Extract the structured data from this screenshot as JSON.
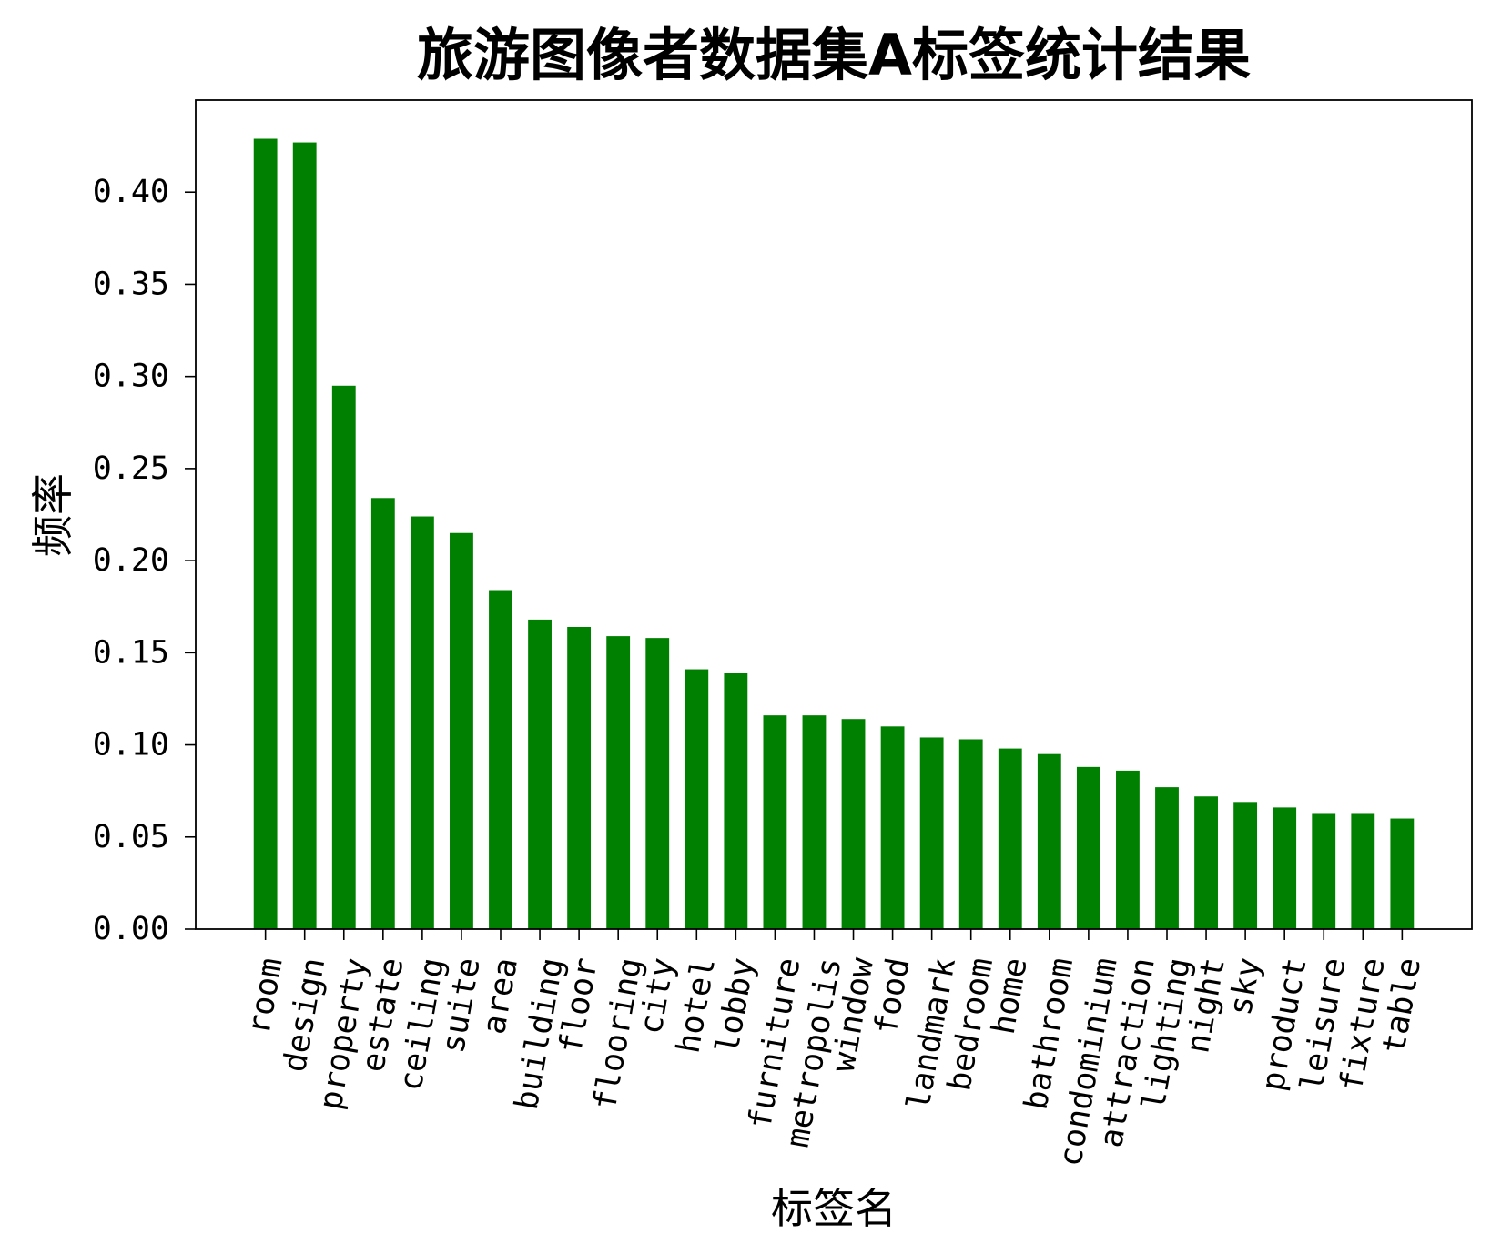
{
  "chart_data": {
    "type": "bar",
    "title": "旅游图像者数据集A标签统计结果",
    "xlabel": "标签名",
    "ylabel": "频率",
    "categories": [
      "room",
      "design",
      "property",
      "estate",
      "ceiling",
      "suite",
      "area",
      "building",
      "floor",
      "flooring",
      "city",
      "hotel",
      "lobby",
      "furniture",
      "metropolis",
      "window",
      "food",
      "landmark",
      "bedroom",
      "home",
      "bathroom",
      "condominium",
      "attraction",
      "lighting",
      "night",
      "sky",
      "product",
      "leisure",
      "fixture",
      "table"
    ],
    "values": [
      0.429,
      0.427,
      0.295,
      0.234,
      0.224,
      0.215,
      0.184,
      0.168,
      0.164,
      0.159,
      0.158,
      0.141,
      0.139,
      0.116,
      0.116,
      0.114,
      0.11,
      0.104,
      0.103,
      0.098,
      0.095,
      0.088,
      0.086,
      0.077,
      0.072,
      0.069,
      0.066,
      0.063,
      0.063,
      0.06
    ],
    "ylim": [
      0,
      0.45
    ],
    "ytick_labels": [
      "0.00",
      "0.05",
      "0.10",
      "0.15",
      "0.20",
      "0.25",
      "0.30",
      "0.35",
      "0.40"
    ],
    "grid": false,
    "bar_color": "#008000"
  }
}
